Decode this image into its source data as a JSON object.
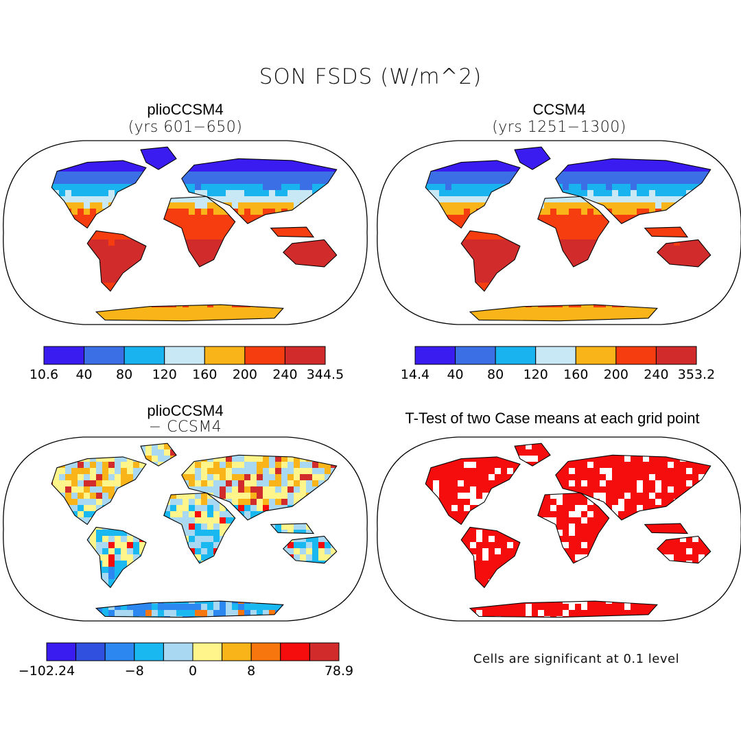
{
  "title": "SON FSDS (W/m^2)",
  "panels": [
    {
      "id": "plio",
      "title": "plioCCSM4",
      "subtitle": "(yrs 601−650)",
      "colorbar": {
        "colors": [
          "#3a1cf0",
          "#3b6fe6",
          "#19b4f0",
          "#c8e8f6",
          "#f8b418",
          "#f53d10",
          "#d12b2b"
        ],
        "ticks": [
          "10.6",
          "40",
          "80",
          "120",
          "160",
          "200",
          "240",
          "344.5"
        ]
      }
    },
    {
      "id": "ccsm4",
      "title": "CCSM4",
      "subtitle": "(yrs 1251−1300)",
      "colorbar": {
        "colors": [
          "#3a1cf0",
          "#3b6fe6",
          "#19b4f0",
          "#c8e8f6",
          "#f8b418",
          "#f53d10",
          "#d12b2b"
        ],
        "ticks": [
          "14.4",
          "40",
          "80",
          "120",
          "160",
          "200",
          "240",
          "353.2"
        ]
      }
    },
    {
      "id": "diff",
      "title": "plioCCSM4",
      "subtitle": "− CCSM4",
      "colorbar": {
        "colors": [
          "#3a1cf0",
          "#3050e0",
          "#2d87f0",
          "#1ab8f0",
          "#a8d8f2",
          "#fff58a",
          "#f8b418",
          "#f7770e",
          "#f50d0d",
          "#d12b2b"
        ],
        "ticks": [
          "−102.24",
          "−8",
          "0",
          "8",
          "78.9"
        ],
        "tick_positions": [
          0,
          3,
          5,
          7,
          10
        ]
      }
    },
    {
      "id": "ttest",
      "title": "T-Test of two Case means at each grid point",
      "subtitle": "",
      "footnote": "Cells are significant at 0.1 level"
    }
  ],
  "map_colors": {
    "arctic": "#3a1cf0",
    "high_lat": "#3b6fe6",
    "mid_lat": "#19b4f0",
    "temperate": "#c8e8f6",
    "subtropic": "#f8b418",
    "tropic": "#f53d10",
    "desert": "#d12b2b",
    "significant": "#f50d0d"
  }
}
